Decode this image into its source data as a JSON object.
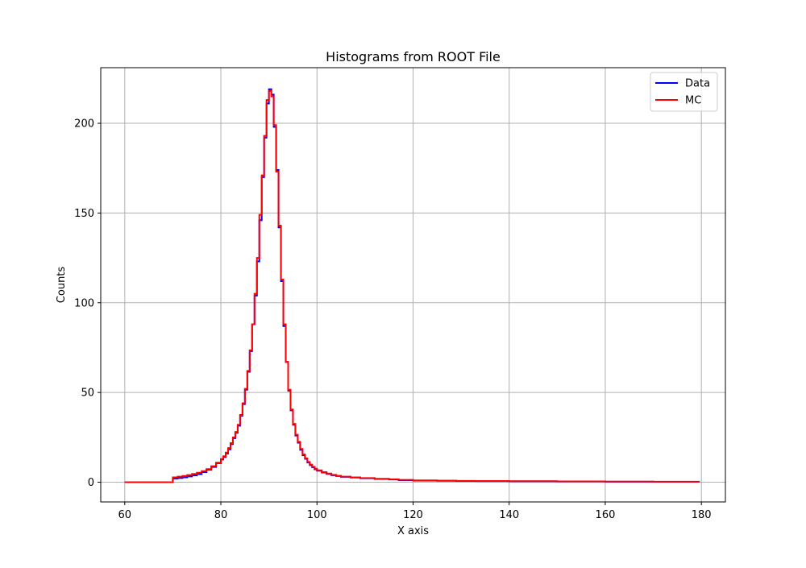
{
  "chart_data": {
    "type": "line",
    "style": "step-histogram",
    "title": "Histograms from ROOT File",
    "xlabel": "X axis",
    "ylabel": "Counts",
    "xlim": [
      55,
      185
    ],
    "ylim": [
      -11,
      231
    ],
    "xticks": [
      60,
      80,
      100,
      120,
      140,
      160,
      180
    ],
    "yticks": [
      0,
      50,
      100,
      150,
      200
    ],
    "grid": true,
    "legend_position": "top-right",
    "bin_width": 0.5,
    "x_start": 60,
    "x_end": 180,
    "series": [
      {
        "name": "Data",
        "color": "#0000ff",
        "points": [
          [
            60,
            0
          ],
          [
            70,
            0
          ],
          [
            70,
            2
          ],
          [
            71,
            2.3
          ],
          [
            72,
            2.7
          ],
          [
            73,
            3.2
          ],
          [
            74,
            3.8
          ],
          [
            75,
            4.5
          ],
          [
            76,
            5.6
          ],
          [
            77,
            6.9
          ],
          [
            78,
            8.5
          ],
          [
            79,
            10.6
          ],
          [
            80,
            12.6
          ],
          [
            80.5,
            14
          ],
          [
            81,
            16
          ],
          [
            81.5,
            18.3
          ],
          [
            82,
            21.2
          ],
          [
            82.5,
            24.5
          ],
          [
            83,
            27.5
          ],
          [
            83.5,
            31.5
          ],
          [
            84,
            37
          ],
          [
            84.5,
            43.5
          ],
          [
            85,
            51.5
          ],
          [
            85.5,
            61.5
          ],
          [
            86,
            73
          ],
          [
            86.5,
            88
          ],
          [
            87,
            104
          ],
          [
            87.5,
            123
          ],
          [
            88,
            146
          ],
          [
            88.5,
            170
          ],
          [
            89,
            192
          ],
          [
            89.5,
            211
          ],
          [
            90,
            219
          ],
          [
            90.5,
            216
          ],
          [
            91,
            198
          ],
          [
            91.5,
            174
          ],
          [
            92,
            142
          ],
          [
            92.5,
            112
          ],
          [
            93,
            87
          ],
          [
            93.5,
            67
          ],
          [
            94,
            51
          ],
          [
            94.5,
            40
          ],
          [
            95,
            32
          ],
          [
            95.5,
            26
          ],
          [
            96,
            22
          ],
          [
            96.5,
            18
          ],
          [
            97,
            15
          ],
          [
            97.5,
            13
          ],
          [
            98,
            11
          ],
          [
            98.5,
            9.5
          ],
          [
            99,
            8.3
          ],
          [
            99.5,
            7.2
          ],
          [
            100,
            6.4
          ],
          [
            101,
            5.4
          ],
          [
            102,
            4.6
          ],
          [
            103,
            3.9
          ],
          [
            104,
            3.4
          ],
          [
            105,
            3
          ],
          [
            107,
            2.6
          ],
          [
            109,
            2.2
          ],
          [
            112,
            1.8
          ],
          [
            115,
            1.5
          ],
          [
            117,
            1.1
          ],
          [
            120,
            0.9
          ],
          [
            125,
            0.8
          ],
          [
            129,
            0.7
          ],
          [
            133,
            0.6
          ],
          [
            140,
            0.5
          ],
          [
            150,
            0.4
          ],
          [
            160,
            0.3
          ],
          [
            170,
            0.25
          ],
          [
            179.5,
            0.2
          ],
          [
            179.5,
            0
          ]
        ]
      },
      {
        "name": "MC",
        "color": "#ff0000",
        "points": [
          [
            60,
            0
          ],
          [
            70,
            0
          ],
          [
            70,
            2.7
          ],
          [
            71,
            3.1
          ],
          [
            72,
            3.5
          ],
          [
            73,
            4
          ],
          [
            74,
            4.6
          ],
          [
            75,
            5.3
          ],
          [
            76,
            6.2
          ],
          [
            77,
            7.3
          ],
          [
            78,
            8.9
          ],
          [
            79,
            10.9
          ],
          [
            80,
            12.9
          ],
          [
            80.5,
            14.5
          ],
          [
            81,
            16.5
          ],
          [
            81.5,
            19
          ],
          [
            82,
            21.8
          ],
          [
            82.5,
            25
          ],
          [
            83,
            28
          ],
          [
            83.5,
            32
          ],
          [
            84,
            37.5
          ],
          [
            84.5,
            44
          ],
          [
            85,
            52
          ],
          [
            85.5,
            62
          ],
          [
            86,
            73.5
          ],
          [
            86.5,
            88
          ],
          [
            87,
            105
          ],
          [
            87.5,
            125
          ],
          [
            88,
            149
          ],
          [
            88.5,
            171
          ],
          [
            89,
            193
          ],
          [
            89.5,
            213
          ],
          [
            90,
            218
          ],
          [
            90.5,
            215
          ],
          [
            91,
            199
          ],
          [
            91.5,
            173
          ],
          [
            92,
            143
          ],
          [
            92.5,
            113
          ],
          [
            93,
            88
          ],
          [
            93.5,
            67
          ],
          [
            94,
            51.5
          ],
          [
            94.5,
            40.5
          ],
          [
            95,
            32.5
          ],
          [
            95.5,
            26.5
          ],
          [
            96,
            22.5
          ],
          [
            96.5,
            18.5
          ],
          [
            97,
            15.5
          ],
          [
            97.5,
            13.3
          ],
          [
            98,
            11.3
          ],
          [
            98.5,
            9.8
          ],
          [
            99,
            8.6
          ],
          [
            99.5,
            7.5
          ],
          [
            100,
            6.6
          ],
          [
            101,
            5.6
          ],
          [
            102,
            4.8
          ],
          [
            103,
            4.1
          ],
          [
            104,
            3.6
          ],
          [
            105,
            3.1
          ],
          [
            107,
            2.7
          ],
          [
            109,
            2.3
          ],
          [
            112,
            1.9
          ],
          [
            115,
            1.6
          ],
          [
            117,
            1.3
          ],
          [
            120,
            1
          ],
          [
            125,
            0.85
          ],
          [
            129,
            0.75
          ],
          [
            133,
            0.65
          ],
          [
            140,
            0.55
          ],
          [
            150,
            0.45
          ],
          [
            160,
            0.35
          ],
          [
            170,
            0.3
          ],
          [
            179.5,
            0.25
          ],
          [
            179.5,
            0
          ]
        ]
      }
    ]
  }
}
